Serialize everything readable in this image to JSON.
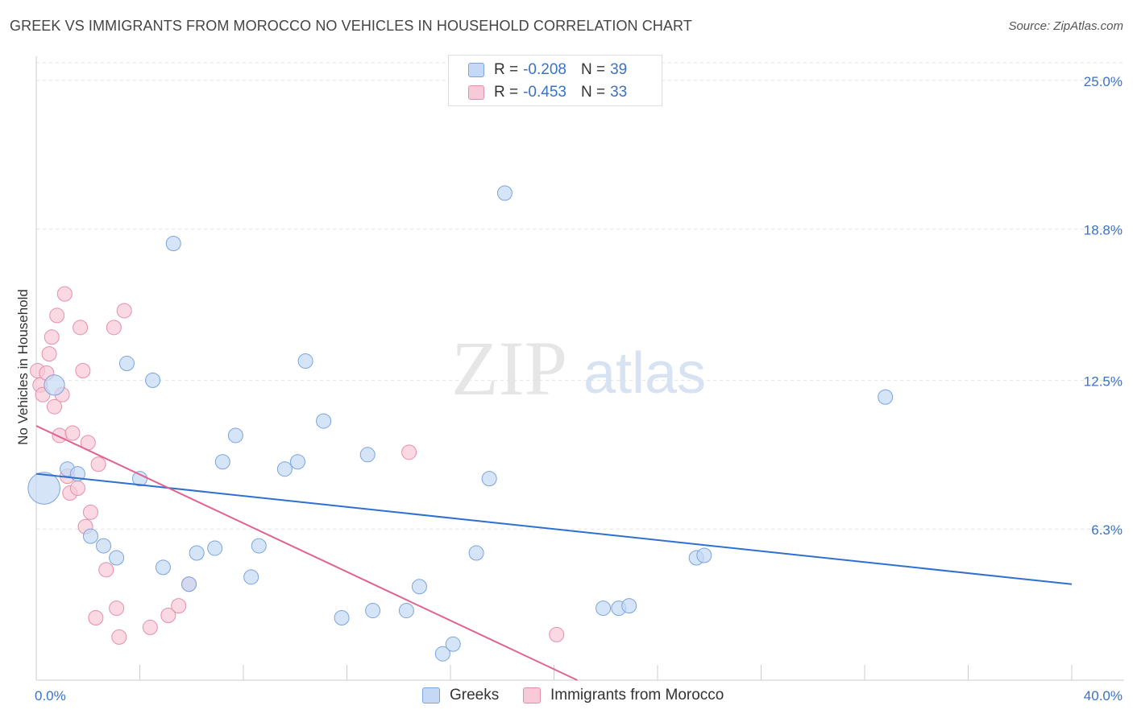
{
  "header": {
    "title": "GREEK VS IMMIGRANTS FROM MOROCCO NO VEHICLES IN HOUSEHOLD CORRELATION CHART",
    "source": "Source: ZipAtlas.com"
  },
  "watermark": {
    "zip": "ZIP",
    "atlas": "atlas"
  },
  "stats": [
    {
      "r_label": "R =",
      "r_value": "-0.208",
      "n_label": "N =",
      "n_value": "39"
    },
    {
      "r_label": "R =",
      "r_value": "-0.453",
      "n_label": "N =",
      "n_value": "33"
    }
  ],
  "colors": {
    "greeks_fill": "#c5d8f5",
    "greeks_stroke": "#7aa4dd",
    "greeks_line": "#2f6fd0",
    "morocco_fill": "#f8c9d6",
    "morocco_stroke": "#e58fac",
    "morocco_line": "#e0648f",
    "tick_label": "#3a72c4",
    "grid": "#e3e3e3"
  },
  "chart_data": {
    "type": "scatter",
    "ylabel": "No Vehicles in Household",
    "xlim": [
      0,
      40
    ],
    "ylim": [
      0,
      26
    ],
    "x_tick_labels": [
      "0.0%",
      "40.0%"
    ],
    "y_ticks": [
      6.3,
      12.5,
      18.8,
      25.0
    ],
    "y_tick_labels": [
      "6.3%",
      "12.5%",
      "18.8%",
      "25.0%"
    ],
    "grid": true,
    "legend_position": "bottom-center",
    "series": [
      {
        "name": "Greeks",
        "trend": {
          "x": [
            0,
            40
          ],
          "y": [
            8.6,
            4.0
          ]
        },
        "points": [
          {
            "x": 0.3,
            "y": 8.0,
            "s": 2.2
          },
          {
            "x": 0.7,
            "y": 12.3,
            "s": 1.4
          },
          {
            "x": 1.2,
            "y": 8.8,
            "s": 1
          },
          {
            "x": 1.6,
            "y": 8.6,
            "s": 1
          },
          {
            "x": 2.1,
            "y": 6.0,
            "s": 1
          },
          {
            "x": 2.6,
            "y": 5.6,
            "s": 1
          },
          {
            "x": 3.1,
            "y": 5.1,
            "s": 1
          },
          {
            "x": 3.5,
            "y": 13.2,
            "s": 1
          },
          {
            "x": 4.0,
            "y": 8.4,
            "s": 1
          },
          {
            "x": 4.5,
            "y": 12.5,
            "s": 1
          },
          {
            "x": 4.9,
            "y": 4.7,
            "s": 1
          },
          {
            "x": 5.3,
            "y": 18.2,
            "s": 1
          },
          {
            "x": 5.9,
            "y": 4.0,
            "s": 1
          },
          {
            "x": 6.2,
            "y": 5.3,
            "s": 1
          },
          {
            "x": 6.9,
            "y": 5.5,
            "s": 1
          },
          {
            "x": 7.2,
            "y": 9.1,
            "s": 1
          },
          {
            "x": 7.7,
            "y": 10.2,
            "s": 1
          },
          {
            "x": 8.3,
            "y": 4.3,
            "s": 1
          },
          {
            "x": 8.6,
            "y": 5.6,
            "s": 1
          },
          {
            "x": 9.6,
            "y": 8.8,
            "s": 1
          },
          {
            "x": 10.1,
            "y": 9.1,
            "s": 1
          },
          {
            "x": 10.4,
            "y": 13.3,
            "s": 1
          },
          {
            "x": 11.1,
            "y": 10.8,
            "s": 1
          },
          {
            "x": 11.8,
            "y": 2.6,
            "s": 1
          },
          {
            "x": 12.8,
            "y": 9.4,
            "s": 1
          },
          {
            "x": 13.0,
            "y": 2.9,
            "s": 1
          },
          {
            "x": 14.3,
            "y": 2.9,
            "s": 1
          },
          {
            "x": 14.8,
            "y": 3.9,
            "s": 1
          },
          {
            "x": 15.7,
            "y": 1.1,
            "s": 1
          },
          {
            "x": 16.1,
            "y": 1.5,
            "s": 1
          },
          {
            "x": 17.0,
            "y": 5.3,
            "s": 1
          },
          {
            "x": 17.5,
            "y": 8.4,
            "s": 1
          },
          {
            "x": 18.1,
            "y": 20.3,
            "s": 1
          },
          {
            "x": 21.9,
            "y": 3.0,
            "s": 1
          },
          {
            "x": 22.5,
            "y": 3.0,
            "s": 1
          },
          {
            "x": 22.9,
            "y": 3.1,
            "s": 1
          },
          {
            "x": 25.5,
            "y": 5.1,
            "s": 1
          },
          {
            "x": 25.8,
            "y": 5.2,
            "s": 1
          },
          {
            "x": 32.8,
            "y": 11.8,
            "s": 1
          }
        ]
      },
      {
        "name": "Immigrants from Morocco",
        "trend": {
          "x": [
            0,
            20.9
          ],
          "y": [
            10.6,
            0
          ]
        },
        "points": [
          {
            "x": 0.05,
            "y": 12.9,
            "s": 1
          },
          {
            "x": 0.15,
            "y": 12.3,
            "s": 1
          },
          {
            "x": 0.25,
            "y": 11.9,
            "s": 1
          },
          {
            "x": 0.4,
            "y": 12.8,
            "s": 1
          },
          {
            "x": 0.5,
            "y": 13.6,
            "s": 1
          },
          {
            "x": 0.6,
            "y": 14.3,
            "s": 1
          },
          {
            "x": 0.7,
            "y": 11.4,
            "s": 1
          },
          {
            "x": 0.8,
            "y": 15.2,
            "s": 1
          },
          {
            "x": 0.9,
            "y": 10.2,
            "s": 1
          },
          {
            "x": 1.0,
            "y": 11.9,
            "s": 1
          },
          {
            "x": 1.1,
            "y": 16.1,
            "s": 1
          },
          {
            "x": 1.2,
            "y": 8.5,
            "s": 1
          },
          {
            "x": 1.3,
            "y": 7.8,
            "s": 1
          },
          {
            "x": 1.4,
            "y": 10.3,
            "s": 1
          },
          {
            "x": 1.6,
            "y": 8.0,
            "s": 1
          },
          {
            "x": 1.7,
            "y": 14.7,
            "s": 1
          },
          {
            "x": 1.8,
            "y": 12.9,
            "s": 1
          },
          {
            "x": 1.9,
            "y": 6.4,
            "s": 1
          },
          {
            "x": 2.0,
            "y": 9.9,
            "s": 1
          },
          {
            "x": 2.1,
            "y": 7.0,
            "s": 1
          },
          {
            "x": 2.3,
            "y": 2.6,
            "s": 1
          },
          {
            "x": 2.4,
            "y": 9.0,
            "s": 1
          },
          {
            "x": 2.7,
            "y": 4.6,
            "s": 1
          },
          {
            "x": 3.0,
            "y": 14.7,
            "s": 1
          },
          {
            "x": 3.2,
            "y": 1.8,
            "s": 1
          },
          {
            "x": 3.4,
            "y": 15.4,
            "s": 1
          },
          {
            "x": 4.4,
            "y": 2.2,
            "s": 1
          },
          {
            "x": 5.1,
            "y": 2.7,
            "s": 1
          },
          {
            "x": 5.5,
            "y": 3.1,
            "s": 1
          },
          {
            "x": 5.9,
            "y": 4.0,
            "s": 1
          },
          {
            "x": 14.4,
            "y": 9.5,
            "s": 1
          },
          {
            "x": 20.1,
            "y": 1.9,
            "s": 1
          },
          {
            "x": 3.1,
            "y": 3.0,
            "s": 1
          }
        ]
      }
    ]
  }
}
